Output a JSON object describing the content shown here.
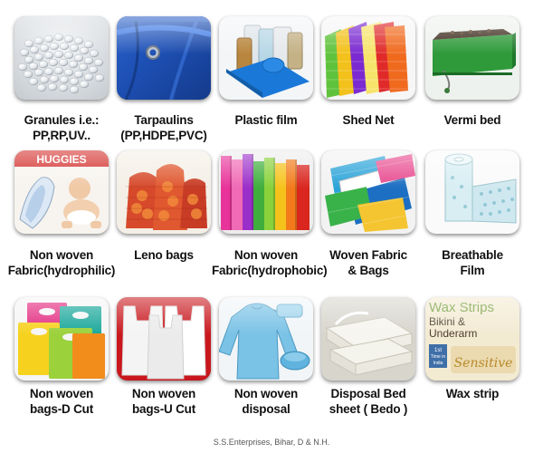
{
  "items": [
    {
      "label_lines": [
        "Granules i.e.:",
        "PP,RP,UV.."
      ],
      "icon": "plastic-granules"
    },
    {
      "label_lines": [
        "Tarpaulins",
        "(PP,HDPE,PVC)"
      ],
      "icon": "blue-tarpaulin"
    },
    {
      "label_lines": [
        "Plastic film"
      ],
      "icon": "plastic-film-rolls"
    },
    {
      "label_lines": [
        "Shed Net"
      ],
      "icon": "shed-net-bags"
    },
    {
      "label_lines": [
        "Vermi bed"
      ],
      "icon": "vermi-bed"
    },
    {
      "label_lines": [
        "Non woven",
        "Fabric(hydrophilic)"
      ],
      "icon": "diaper-pad"
    },
    {
      "label_lines": [
        "Leno bags"
      ],
      "icon": "leno-bags"
    },
    {
      "label_lines": [
        "Non woven",
        "Fabric(hydrophobic)"
      ],
      "icon": "fabric-rolls"
    },
    {
      "label_lines": [
        "Woven Fabric",
        "& Bags"
      ],
      "icon": "woven-fabric"
    },
    {
      "label_lines": [
        "Breathable",
        "Film"
      ],
      "icon": "breathable-film-roll"
    },
    {
      "label_lines": [
        "Non woven",
        "bags-D Cut"
      ],
      "icon": "d-cut-bags"
    },
    {
      "label_lines": [
        "Non woven",
        "bags-U Cut"
      ],
      "icon": "u-cut-bags"
    },
    {
      "label_lines": [
        "Non woven",
        "disposal"
      ],
      "icon": "disposable-gown"
    },
    {
      "label_lines": [
        "Disposal Bed",
        "sheet ( Bedo )"
      ],
      "icon": "bed-sheets"
    },
    {
      "label_lines": [
        "Wax strip"
      ],
      "icon": "wax-strips-pack"
    }
  ],
  "images": {
    "huggies_brand": "HUGGIES",
    "wax_box": {
      "title": "Wax Strips",
      "line1": "Bikini &",
      "line2": "Underarm",
      "badge_1": "1st",
      "badge_2": "Time in",
      "badge_3": "India",
      "tag": "Sensitive"
    }
  },
  "footer": "S.S.Enterprises, Bihar, D & N.H."
}
